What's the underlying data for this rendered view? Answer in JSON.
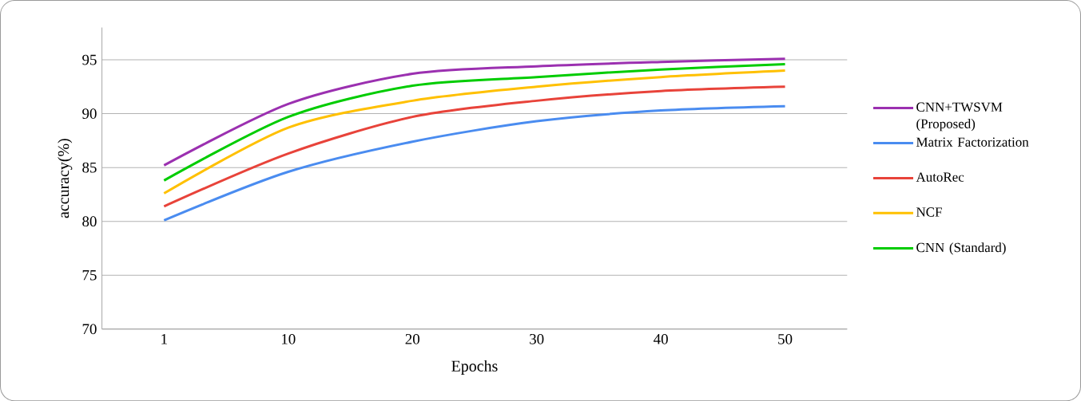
{
  "chart_data": {
    "type": "line",
    "xlabel": "Epochs",
    "ylabel": "accuracy(%)",
    "categories": [
      "1",
      "10",
      "20",
      "30",
      "40",
      "50"
    ],
    "series": [
      {
        "name": "CNN+TWSVM (Proposed)",
        "color": "#9b30b0",
        "values": [
          85.2,
          90.9,
          93.7,
          94.4,
          94.8,
          95.1
        ]
      },
      {
        "name": "Matrix Factorization",
        "color": "#4a8cf0",
        "values": [
          80.1,
          84.6,
          87.4,
          89.3,
          90.3,
          90.7
        ]
      },
      {
        "name": "AutoRec",
        "color": "#e8433a",
        "values": [
          81.4,
          86.3,
          89.7,
          91.2,
          92.1,
          92.5
        ]
      },
      {
        "name": "NCF",
        "color": "#ffc000",
        "values": [
          82.6,
          88.7,
          91.2,
          92.5,
          93.4,
          94.0
        ]
      },
      {
        "name": "CNN (Standard)",
        "color": "#00cc00",
        "values": [
          83.8,
          89.7,
          92.6,
          93.4,
          94.1,
          94.6
        ]
      }
    ],
    "ylim": [
      70,
      98
    ],
    "yticks": [
      70,
      75,
      80,
      85,
      90,
      95
    ],
    "grid": "y",
    "legend": "right",
    "marker": "none",
    "line_style": "solid"
  }
}
